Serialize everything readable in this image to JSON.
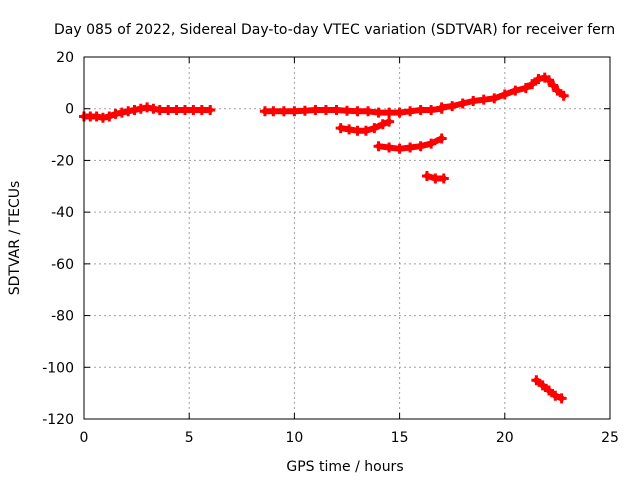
{
  "chart_data": {
    "type": "scatter",
    "title": "Day 085 of 2022, Sidereal Day-to-day VTEC variation (SDTVAR) for receiver fern",
    "xlabel": "GPS time / hours",
    "ylabel": "SDTVAR / TECUs",
    "xlim": [
      0,
      25
    ],
    "ylim": [
      -120,
      20
    ],
    "xticks": [
      0,
      5,
      10,
      15,
      20,
      25
    ],
    "yticks": [
      20,
      0,
      -20,
      -40,
      -60,
      -80,
      -100,
      -120
    ],
    "grid": true,
    "marker_color": "#ff0000",
    "series": [
      {
        "points": [
          [
            0,
            -3
          ],
          [
            0.3,
            -3
          ],
          [
            0.6,
            -3
          ],
          [
            0.9,
            -3.5
          ],
          [
            1.2,
            -3
          ],
          [
            1.5,
            -2
          ],
          [
            1.8,
            -1.5
          ],
          [
            2.1,
            -1
          ],
          [
            2.4,
            -0.5
          ],
          [
            2.7,
            0
          ],
          [
            3.0,
            0.5
          ],
          [
            3.3,
            0
          ],
          [
            3.6,
            -0.5
          ],
          [
            4.0,
            -0.5
          ],
          [
            4.4,
            -0.5
          ],
          [
            4.8,
            -0.5
          ],
          [
            5.2,
            -0.5
          ],
          [
            5.6,
            -0.5
          ],
          [
            6.0,
            -0.5
          ]
        ]
      },
      {
        "points": [
          [
            8.6,
            -1
          ],
          [
            9.0,
            -1
          ],
          [
            9.5,
            -1
          ],
          [
            10.0,
            -1
          ],
          [
            10.5,
            -0.8
          ],
          [
            11.0,
            -0.5
          ],
          [
            11.5,
            -0.5
          ],
          [
            12.0,
            -0.5
          ],
          [
            12.5,
            -0.8
          ],
          [
            13.0,
            -1
          ],
          [
            13.5,
            -1
          ],
          [
            14.0,
            -1.5
          ],
          [
            14.5,
            -1.5
          ],
          [
            15.0,
            -1.5
          ],
          [
            15.5,
            -1
          ],
          [
            16.0,
            -0.5
          ],
          [
            16.5,
            -0.5
          ],
          [
            17.0,
            0
          ]
        ]
      },
      {
        "points": [
          [
            17.0,
            0.5
          ],
          [
            17.5,
            1
          ],
          [
            18.0,
            2
          ],
          [
            18.5,
            3
          ],
          [
            19.0,
            3.5
          ],
          [
            19.5,
            4
          ],
          [
            20.0,
            5.5
          ],
          [
            20.5,
            7
          ],
          [
            21.0,
            8
          ],
          [
            21.3,
            9.5
          ],
          [
            21.6,
            11.5
          ],
          [
            21.9,
            12
          ],
          [
            22.1,
            11
          ],
          [
            22.3,
            9
          ],
          [
            22.5,
            7
          ],
          [
            22.8,
            5
          ]
        ]
      },
      {
        "points": [
          [
            12.2,
            -7.5
          ],
          [
            12.6,
            -8
          ],
          [
            13.0,
            -8.5
          ],
          [
            13.4,
            -8.5
          ],
          [
            13.8,
            -7.5
          ],
          [
            14.2,
            -6
          ],
          [
            14.5,
            -5
          ]
        ]
      },
      {
        "points": [
          [
            14.0,
            -14.5
          ],
          [
            14.5,
            -15
          ],
          [
            15.0,
            -15.5
          ],
          [
            15.5,
            -15
          ],
          [
            16.0,
            -14.5
          ],
          [
            16.5,
            -13.5
          ],
          [
            17.0,
            -11.5
          ]
        ]
      },
      {
        "points": [
          [
            16.3,
            -26
          ],
          [
            16.7,
            -27
          ],
          [
            17.1,
            -27
          ]
        ]
      },
      {
        "points": [
          [
            21.5,
            -105
          ],
          [
            21.8,
            -107
          ],
          [
            22.1,
            -109
          ],
          [
            22.4,
            -111
          ],
          [
            22.7,
            -112
          ]
        ]
      }
    ]
  }
}
